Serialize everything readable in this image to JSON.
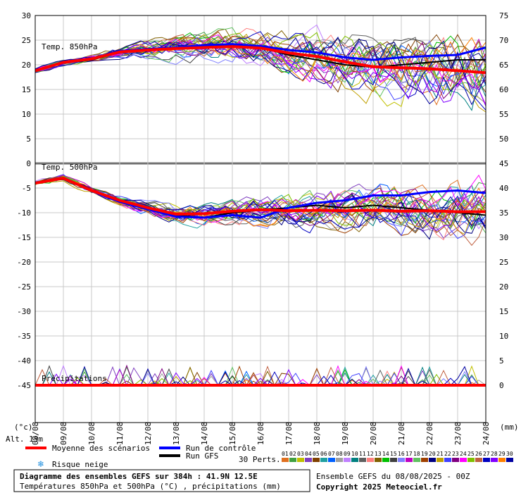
{
  "chart_data": {
    "type": "line",
    "title": "Diagramme des ensembles GEFS sur 384h : 41.9N 12.5E",
    "subtitle": "Températures 850hPa et 500hPa (°C) , précipitations (mm)",
    "run_info": "Ensemble GEFS du 08/08/2025 - 00Z",
    "copyright": "Copyright 2025 Meteociel.fr",
    "altitude": "Alt. 13m",
    "left_axis_unit": "(°c)",
    "right_axis_unit": "(mm)",
    "left_ticks": [
      30,
      25,
      20,
      15,
      10,
      5,
      0,
      -5,
      -10,
      -15,
      -20,
      -25,
      -30,
      -35,
      -40,
      -45
    ],
    "right_ticks": [
      75,
      70,
      65,
      60,
      55,
      50,
      45,
      40,
      35,
      30,
      25,
      20,
      15,
      10,
      5,
      0
    ],
    "x_labels": [
      "08/08",
      "09/08",
      "10/08",
      "11/08",
      "12/08",
      "13/08",
      "14/08",
      "15/08",
      "16/08",
      "17/08",
      "18/08",
      "19/08",
      "20/08",
      "21/08",
      "22/08",
      "23/08",
      "24/08"
    ],
    "panels": {
      "t850": "Temp. 850hPa",
      "t500": "Temp. 500hPa",
      "precip": "Précipitations"
    },
    "legend": {
      "mean": "Moyenne des scénarios",
      "control": "Run de contrôle",
      "gfs": "Run GFS",
      "snow": "Risque neige",
      "perts": "30 Perts."
    },
    "perturbations": [
      "01",
      "02",
      "03",
      "04",
      "05",
      "06",
      "07",
      "08",
      "09",
      "10",
      "11",
      "12",
      "13",
      "14",
      "15",
      "16",
      "17",
      "18",
      "19",
      "20",
      "21",
      "22",
      "23",
      "24",
      "25",
      "26",
      "27",
      "28",
      "29",
      "30"
    ],
    "colors": {
      "mean": "#ff0000",
      "control": "#0000ff",
      "gfs": "#000000",
      "members": [
        "#e07020",
        "#40a040",
        "#c0c000",
        "#8040c0",
        "#804000",
        "#20a0a0",
        "#0060ff",
        "#a0a0a0",
        "#c080ff",
        "#008080",
        "#606060",
        "#ff8080",
        "#806000",
        "#00c000",
        "#404040",
        "#8080ff",
        "#c000c0",
        "#60c060",
        "#a04000",
        "#000080",
        "#c0a000",
        "#4040ff",
        "#800080",
        "#ff00ff",
        "#80c000",
        "#c06040",
        "#0000c0",
        "#8000ff",
        "#ff8000",
        "#0000a0"
      ]
    },
    "series": [
      {
        "name": "Moyenne des scénarios",
        "panel": "t850",
        "x": [
          0,
          1,
          2,
          3,
          4,
          5,
          6,
          7,
          8,
          9,
          10,
          11,
          12,
          13,
          14,
          15,
          16
        ],
        "values": [
          18.8,
          20.5,
          21.2,
          22.6,
          23.0,
          23.3,
          23.5,
          23.7,
          23.4,
          22.4,
          21.7,
          20.6,
          19.6,
          19.4,
          19.2,
          18.8,
          18.4
        ]
      },
      {
        "name": "Run de contrôle",
        "panel": "t850",
        "x": [
          0,
          1,
          2,
          3,
          4,
          5,
          6,
          7,
          8,
          9,
          10,
          11,
          12,
          13,
          14,
          15,
          16
        ],
        "values": [
          18.8,
          20.6,
          21.3,
          22.8,
          23.2,
          23.5,
          24.0,
          24.2,
          23.8,
          23.0,
          22.5,
          21.5,
          21.0,
          21.5,
          21.8,
          22.0,
          23.5
        ]
      },
      {
        "name": "Run GFS",
        "panel": "t850",
        "x": [
          0,
          1,
          2,
          3,
          4,
          5,
          6,
          7,
          8,
          9,
          10,
          11,
          12,
          13,
          14,
          15,
          16
        ],
        "values": [
          18.8,
          20.4,
          21.0,
          22.5,
          23.0,
          23.4,
          23.8,
          24.0,
          23.5,
          22.0,
          21.0,
          20.0,
          19.5,
          20.0,
          20.5,
          21.0,
          21.0
        ]
      },
      {
        "name": "Moyenne des scénarios",
        "panel": "t500",
        "x": [
          0,
          1,
          2,
          3,
          4,
          5,
          6,
          7,
          8,
          9,
          10,
          11,
          12,
          13,
          14,
          15,
          16
        ],
        "values": [
          -4.0,
          -3.0,
          -5.5,
          -7.5,
          -9.0,
          -10.3,
          -10.2,
          -9.7,
          -9.4,
          -9.6,
          -9.5,
          -9.6,
          -9.5,
          -9.7,
          -9.6,
          -9.8,
          -9.8
        ]
      },
      {
        "name": "Run de contrôle",
        "panel": "t500",
        "x": [
          0,
          1,
          2,
          3,
          4,
          5,
          6,
          7,
          8,
          9,
          10,
          11,
          12,
          13,
          14,
          15,
          16
        ],
        "values": [
          -4.0,
          -3.0,
          -5.6,
          -7.8,
          -9.3,
          -10.8,
          -11.0,
          -10.5,
          -11.0,
          -9.0,
          -8.0,
          -7.5,
          -6.5,
          -6.5,
          -5.8,
          -5.5,
          -6.0
        ]
      },
      {
        "name": "Run GFS",
        "panel": "t500",
        "x": [
          0,
          1,
          2,
          3,
          4,
          5,
          6,
          7,
          8,
          9,
          10,
          11,
          12,
          13,
          14,
          15,
          16
        ],
        "values": [
          -4.0,
          -3.0,
          -5.5,
          -7.5,
          -9.2,
          -10.5,
          -11.0,
          -10.0,
          -9.5,
          -9.0,
          -8.5,
          -9.0,
          -8.5,
          -9.0,
          -9.5,
          -10.0,
          -10.5
        ]
      },
      {
        "name": "Moyenne des scénarios",
        "panel": "precip",
        "x": [
          0,
          1,
          2,
          3,
          4,
          5,
          6,
          7,
          8,
          9,
          10,
          11,
          12,
          13,
          14,
          15,
          16
        ],
        "values": [
          0,
          0,
          0,
          0,
          0,
          0,
          0,
          0,
          0,
          0,
          0,
          0,
          0,
          0,
          0,
          0,
          0
        ]
      }
    ],
    "xlim": [
      0,
      16
    ],
    "ylim_left": [
      -45,
      30
    ],
    "ylim_right": [
      0,
      75
    ]
  }
}
